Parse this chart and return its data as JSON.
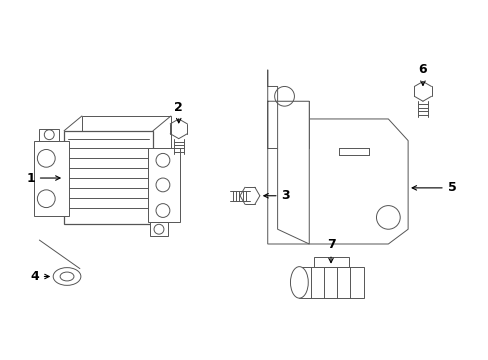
{
  "background_color": "#ffffff",
  "line_color": "#555555",
  "text_color": "#000000",
  "label_fontsize": 9,
  "fig_width": 4.89,
  "fig_height": 3.6,
  "dpi": 100
}
